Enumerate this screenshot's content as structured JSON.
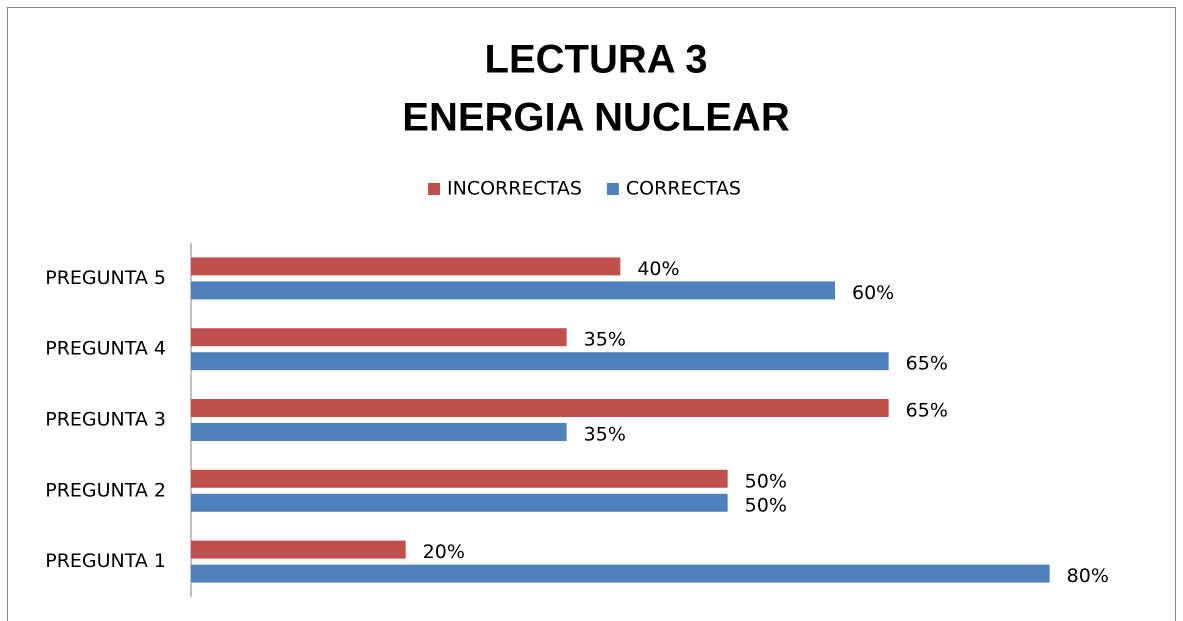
{
  "chart_data": {
    "type": "bar",
    "orientation": "horizontal",
    "title_lines": [
      "LECTURA 3",
      "ENERGIA NUCLEAR"
    ],
    "categories": [
      "PREGUNTA 1",
      "PREGUNTA 2",
      "PREGUNTA 3",
      "PREGUNTA 4",
      "PREGUNTA 5"
    ],
    "series": [
      {
        "name": "INCORRECTAS",
        "color": "#c0504d",
        "values": [
          20,
          50,
          65,
          35,
          40
        ],
        "value_labels": [
          "20%",
          "50%",
          "65%",
          "35%",
          "40%"
        ]
      },
      {
        "name": "CORRECTAS",
        "color": "#4f81bd",
        "values": [
          80,
          50,
          35,
          65,
          60
        ],
        "value_labels": [
          "80%",
          "50%",
          "35%",
          "65%",
          "60%"
        ]
      }
    ],
    "xlim": [
      0,
      90
    ],
    "legend": "top"
  }
}
